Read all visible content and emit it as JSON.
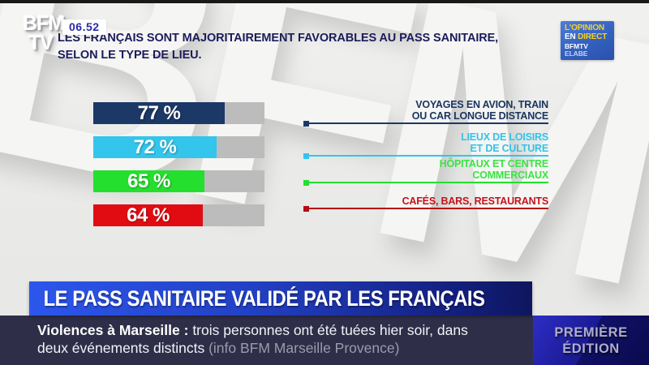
{
  "background": {
    "watermark": "BFM"
  },
  "header": {
    "logo_line1": "BFM",
    "logo_line2": "TV",
    "time": "06.52",
    "title_line1": "LES FRANÇAIS SONT MAJORITAIREMENT FAVORABLES AU PASS SANITAIRE,",
    "title_line2": "SELON LE TYPE DE LIEU."
  },
  "opinion_badge": {
    "line1": "L'OPINION",
    "line2_white": "EN",
    "line2_yellow": "DIRECT",
    "brand_bold": "BFMTV",
    "brand_light": "ELABE"
  },
  "chart_data": {
    "type": "bar",
    "orientation": "horizontal",
    "value_unit": "%",
    "axis_max": 100,
    "track_color": "#bcbcbc",
    "title": "Les Français sont majoritairement favorables au pass sanitaire, selon le type de lieu",
    "categories": [
      "Voyages en avion, train ou car longue distance",
      "Lieux de loisirs et de culture",
      "Hôpitaux et centre commerciaux",
      "Cafés, bars, restaurants"
    ],
    "values": [
      77,
      72,
      65,
      64
    ],
    "bars": [
      {
        "value": 77,
        "value_label": "77 %",
        "color": "#1c3866",
        "line_color": "#1c3866",
        "label_color": "#1a3560",
        "label_lines": [
          "VOYAGES EN AVION, TRAIN",
          "OU CAR LONGUE DISTANCE"
        ]
      },
      {
        "value": 72,
        "value_label": "72 %",
        "color": "#33c5ec",
        "line_color": "#33c5ec",
        "label_color": "#36c2e8",
        "label_lines": [
          "LIEUX DE LOISIRS",
          "ET DE CULTURE"
        ]
      },
      {
        "value": 65,
        "value_label": "65 %",
        "color": "#24df2e",
        "line_color": "#24df2e",
        "label_color": "#3ae345",
        "label_lines": [
          "HÔPITAUX ET CENTRE",
          "COMMERCIAUX"
        ]
      },
      {
        "value": 64,
        "value_label": "64 %",
        "color": "#e10c12",
        "line_color": "#b50d12",
        "label_color": "#c6121b",
        "label_lines": [
          "CAFÉS, BARS, RESTAURANTS"
        ]
      }
    ]
  },
  "headline_banner": {
    "text": "LE PASS SANITAIRE VALIDÉ PAR LES FRANÇAIS"
  },
  "ticker": {
    "line1_bold": "Violences à Marseille :",
    "line1_regular": " trois personnes ont été tuées hier soir, dans",
    "line2_regular": "deux événements distincts ",
    "line2_muted": "(info BFM Marseille Provence)"
  },
  "edition_badge": {
    "line1": "PREMIÈRE",
    "line2": "ÉDITION"
  }
}
